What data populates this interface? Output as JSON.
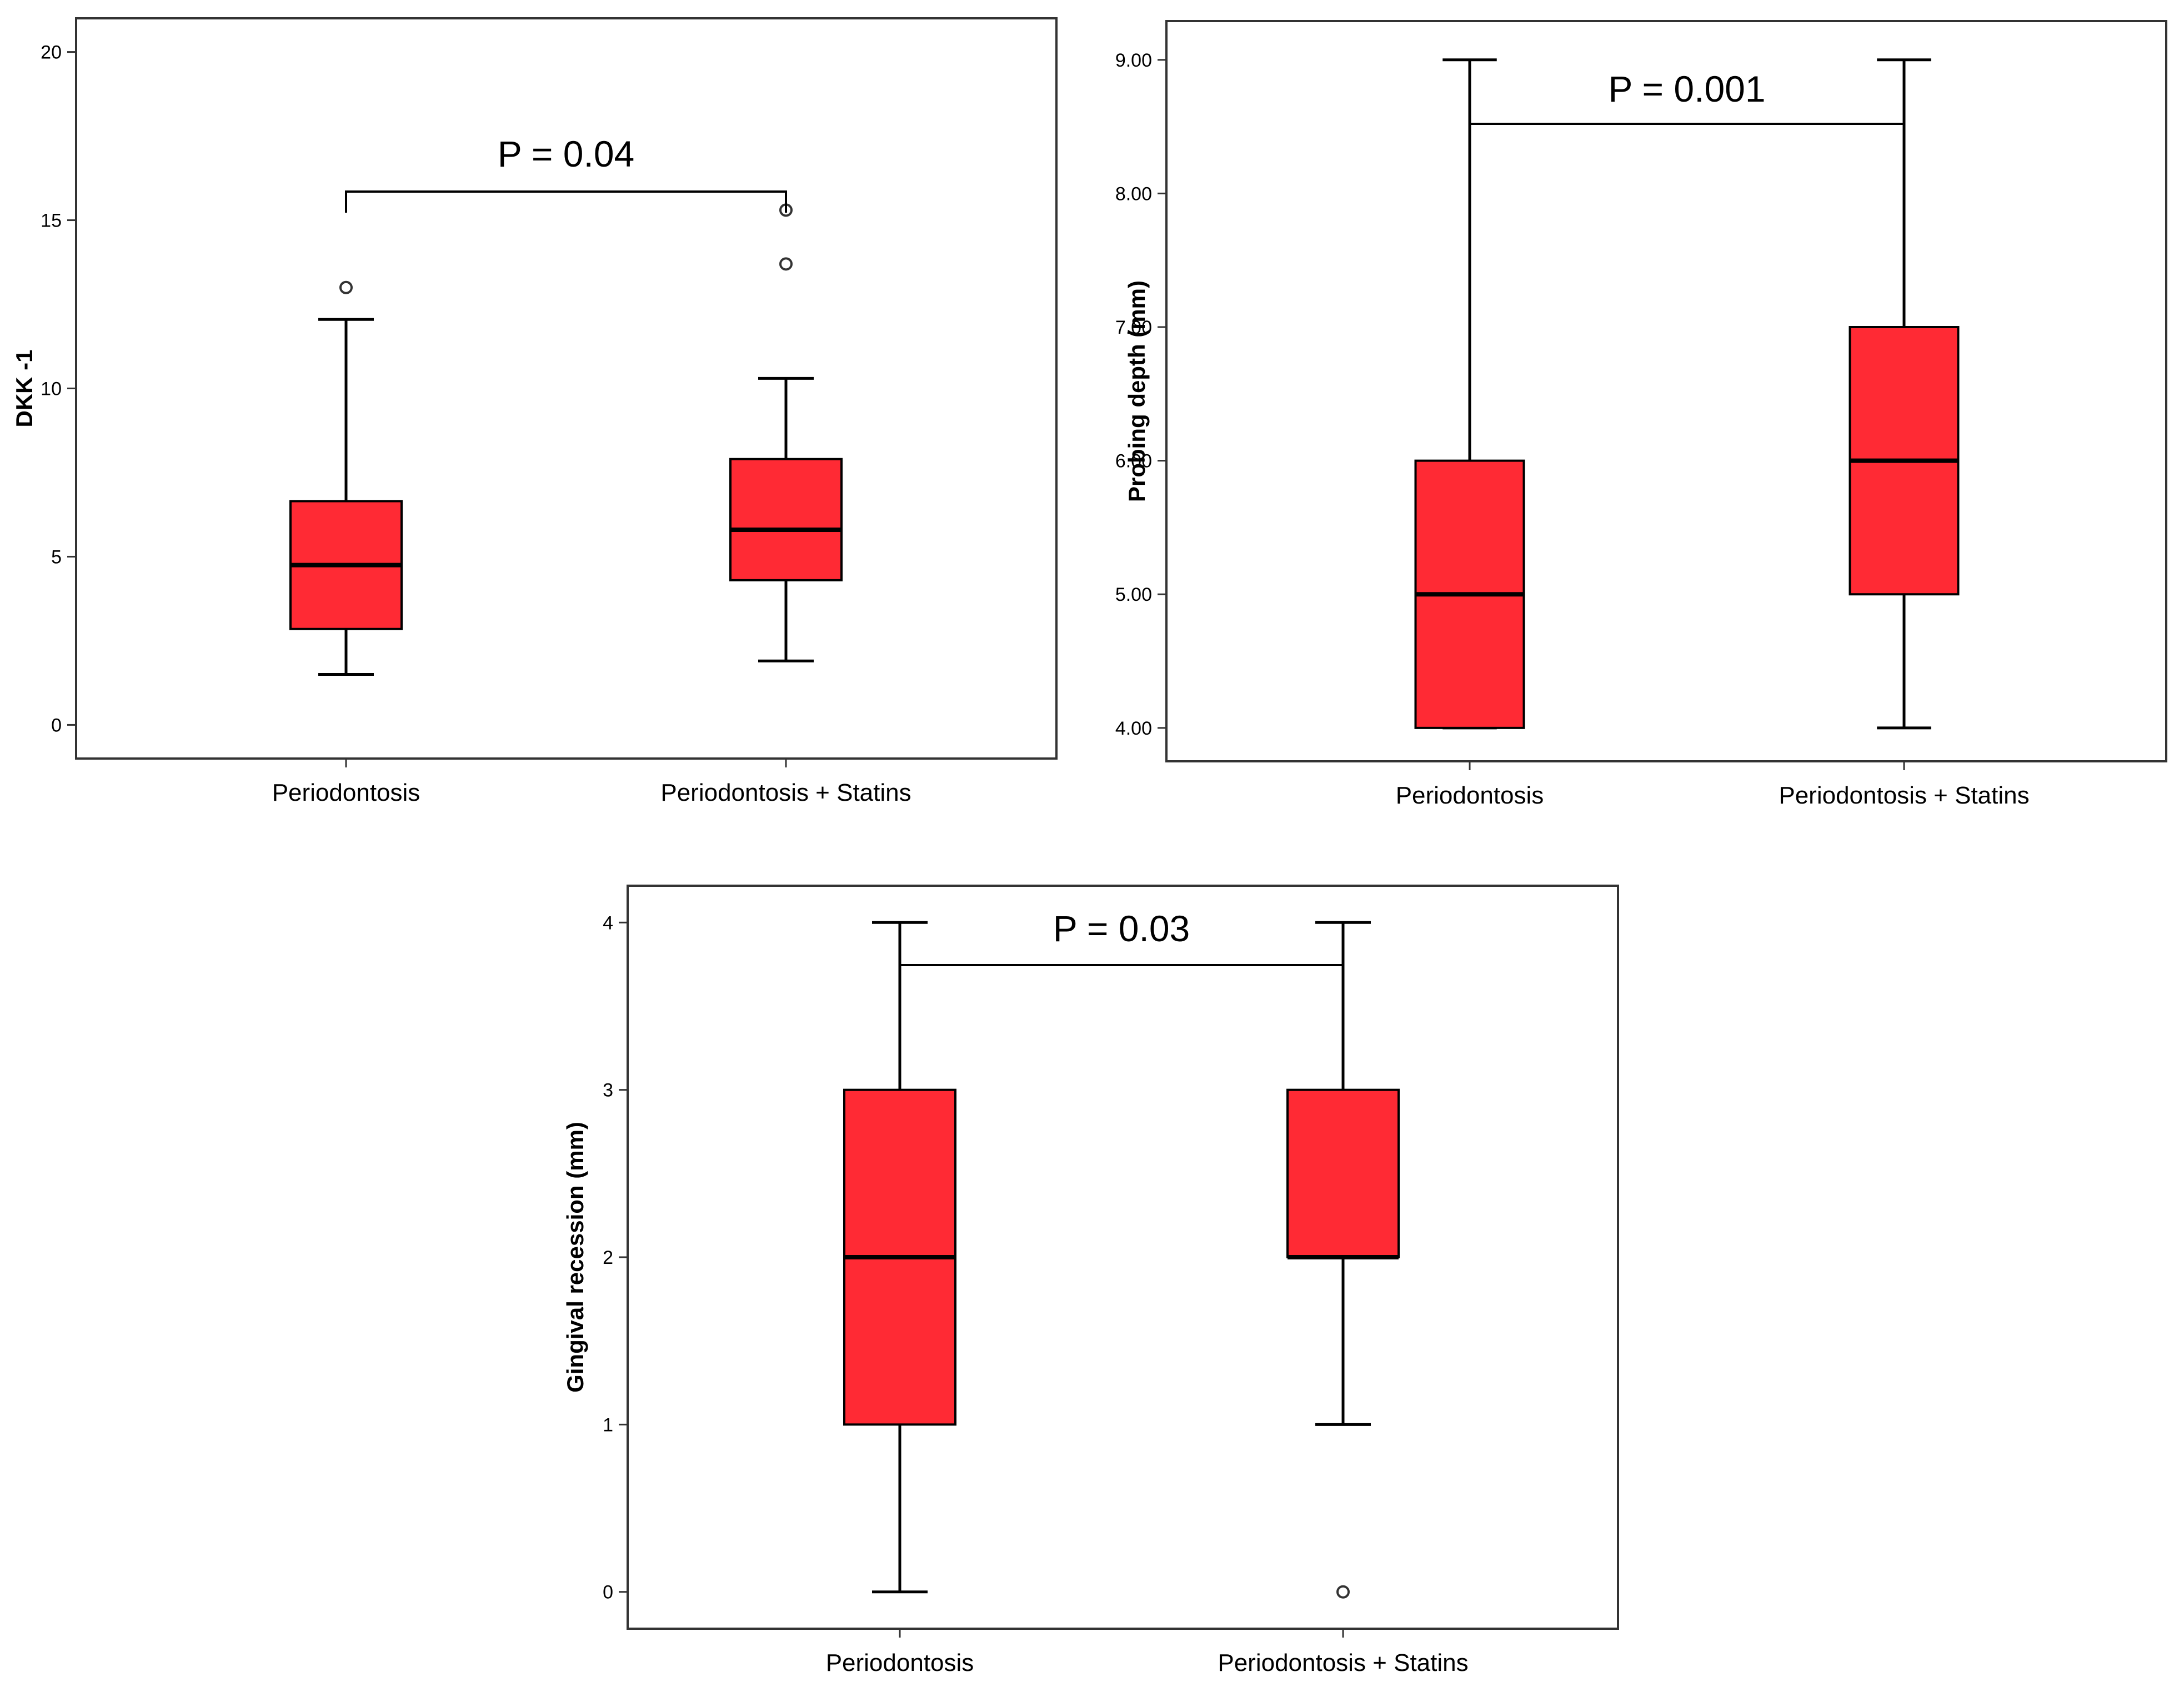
{
  "figure": {
    "panel_count": 3,
    "box_color": "#ff2a34",
    "line_color": "#000000"
  },
  "chart_data": [
    {
      "type": "boxplot",
      "ylabel": "DKK -1",
      "categories": [
        "Periodontosis",
        "Periodontosis + Statins"
      ],
      "ylim": [
        -1,
        21
      ],
      "yticks": [
        0,
        5,
        10,
        15,
        20
      ],
      "ytick_labels": [
        "0",
        "5",
        "10",
        "15",
        "20"
      ],
      "series": [
        {
          "name": "Periodontosis",
          "min": 1.5,
          "q1": 2.85,
          "median": 4.75,
          "q3": 6.65,
          "max": 12.05,
          "outliers": [
            13.0
          ]
        },
        {
          "name": "Periodontosis + Statins",
          "min": 1.9,
          "q1": 4.3,
          "median": 5.8,
          "q3": 7.9,
          "max": 10.3,
          "outliers": [
            13.7,
            15.3
          ]
        }
      ],
      "significance": {
        "label": "P = 0.04",
        "between": [
          0,
          1
        ]
      }
    },
    {
      "type": "boxplot",
      "ylabel": "Probing depth (mm)",
      "categories": [
        "Periodontosis",
        "Periodontosis + Statins"
      ],
      "ylim": [
        3.75,
        9.29
      ],
      "yticks": [
        4,
        5,
        6,
        7,
        8,
        9
      ],
      "ytick_labels": [
        "4.00",
        "5.00",
        "6.00",
        "7.00",
        "8.00",
        "9.00"
      ],
      "series": [
        {
          "name": "Periodontosis",
          "min": 4.0,
          "q1": 4.0,
          "median": 5.0,
          "q3": 6.0,
          "max": 9.0,
          "outliers": []
        },
        {
          "name": "Periodontosis + Statins",
          "min": 4.0,
          "q1": 5.0,
          "median": 6.0,
          "q3": 7.0,
          "max": 9.0,
          "outliers": []
        }
      ],
      "significance": {
        "label": "P = 0.001",
        "between": [
          0,
          1
        ]
      }
    },
    {
      "type": "boxplot",
      "ylabel": "Gingival recession (mm)",
      "categories": [
        "Periodontosis",
        "Periodontosis + Statins"
      ],
      "ylim": [
        -0.22,
        4.22
      ],
      "yticks": [
        0,
        1,
        2,
        3,
        4
      ],
      "ytick_labels": [
        "0",
        "1",
        "2",
        "3",
        "4"
      ],
      "series": [
        {
          "name": "Periodontosis",
          "min": 0.0,
          "q1": 1.0,
          "median": 2.0,
          "q3": 3.0,
          "max": 4.0,
          "outliers": []
        },
        {
          "name": "Periodontosis + Statins",
          "min": 1.0,
          "q1": 2.0,
          "median": 2.0,
          "q3": 3.0,
          "max": 4.0,
          "outliers": [
            0.0
          ]
        }
      ],
      "significance": {
        "label": "P = 0.03",
        "between": [
          0,
          1
        ]
      }
    }
  ]
}
